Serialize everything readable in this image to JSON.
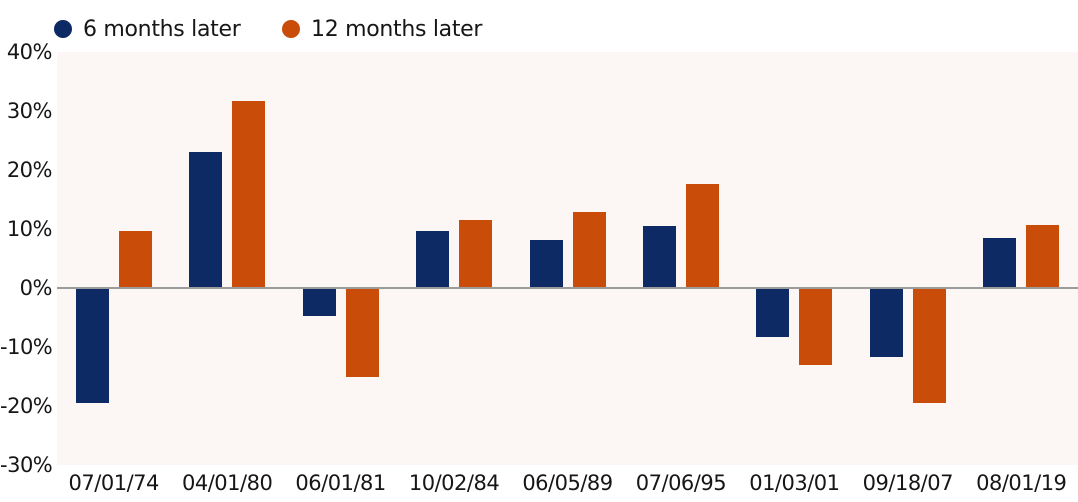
{
  "legend": {
    "items": [
      {
        "label": "6 months later",
        "color": "#0E2A64"
      },
      {
        "label": "12 months later",
        "color": "#C94D08"
      }
    ]
  },
  "chart_data": {
    "type": "bar",
    "title": "",
    "xlabel": "",
    "ylabel": "",
    "categories": [
      "07/01/74",
      "04/01/80",
      "06/01/81",
      "10/02/84",
      "06/05/89",
      "07/06/95",
      "01/03/01",
      "09/18/07",
      "08/01/19"
    ],
    "series": [
      {
        "name": "6 months later",
        "color": "#0E2A64",
        "values": [
          -19.5,
          23.0,
          -4.7,
          9.7,
          8.1,
          10.5,
          -8.3,
          -11.7,
          8.5
        ]
      },
      {
        "name": "12 months later",
        "color": "#C94D08",
        "values": [
          9.6,
          31.7,
          -15.1,
          11.5,
          12.9,
          17.6,
          -13.1,
          -19.5,
          10.7
        ]
      }
    ],
    "ylim": [
      -30,
      40
    ],
    "ytick_step": 10,
    "ytick_labels": [
      "40%",
      "30%",
      "20%",
      "10%",
      "0%",
      "-10%",
      "-20%",
      "-30%"
    ],
    "grid": false,
    "zero_line": true,
    "legend_position": "top-left"
  },
  "colors": {
    "page_bg": "#FFFFFF",
    "plot_bg": "#FCF7F5",
    "zero_line": "#9B9B9B",
    "text": "#161616"
  }
}
